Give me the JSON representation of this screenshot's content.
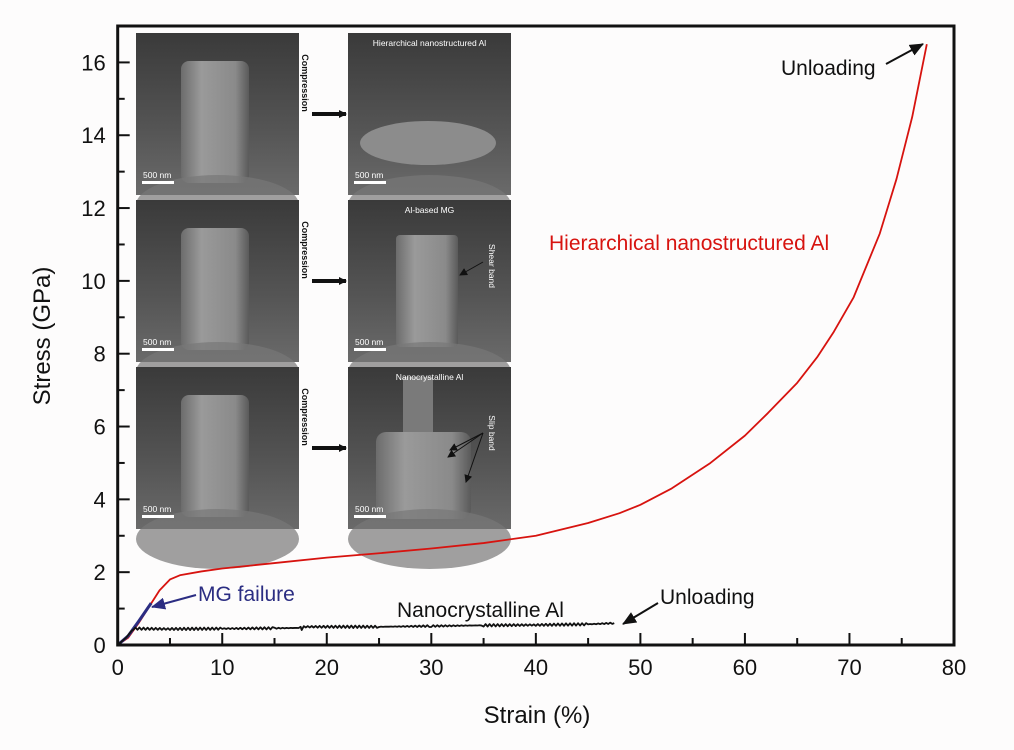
{
  "chart_data": {
    "type": "line",
    "xlabel": "Strain (%)",
    "ylabel": "Stress (GPa)",
    "xlim": [
      0,
      80
    ],
    "ylim": [
      0,
      17
    ],
    "xticks": [
      0,
      10,
      20,
      30,
      40,
      50,
      60,
      70,
      80
    ],
    "yticks": [
      0,
      2,
      4,
      6,
      8,
      10,
      12,
      14,
      16
    ],
    "grid": false,
    "series": [
      {
        "name": "Hierarchical nanostructured Al",
        "color": "#d7130f",
        "points": [
          [
            0,
            0
          ],
          [
            1,
            0.2
          ],
          [
            2,
            0.6
          ],
          [
            3,
            1.05
          ],
          [
            4,
            1.5
          ],
          [
            5,
            1.8
          ],
          [
            6,
            1.92
          ],
          [
            8,
            2.02
          ],
          [
            10,
            2.1
          ],
          [
            15,
            2.25
          ],
          [
            20,
            2.4
          ],
          [
            25,
            2.52
          ],
          [
            30,
            2.65
          ],
          [
            35,
            2.8
          ],
          [
            40,
            3.0
          ],
          [
            45,
            3.35
          ],
          [
            48,
            3.62
          ],
          [
            50,
            3.85
          ],
          [
            53,
            4.3
          ],
          [
            56.7,
            5.0
          ],
          [
            60,
            5.75
          ],
          [
            62.2,
            6.37
          ],
          [
            65,
            7.2
          ],
          [
            66.9,
            7.9
          ],
          [
            68.5,
            8.6
          ],
          [
            70.4,
            9.55
          ],
          [
            72.9,
            11.3
          ],
          [
            74.5,
            12.8
          ],
          [
            76,
            14.5
          ],
          [
            77.4,
            16.5
          ]
        ]
      },
      {
        "name": "MG failure",
        "color": "#2b2d82",
        "points": [
          [
            0,
            0
          ],
          [
            1,
            0.25
          ],
          [
            2,
            0.65
          ],
          [
            3.2,
            1.15
          ]
        ]
      },
      {
        "name": "Nanocrystalline Al",
        "color": "#111111",
        "points": [
          [
            0,
            0
          ],
          [
            0.8,
            0.2
          ],
          [
            1.5,
            0.45
          ],
          [
            5,
            0.44
          ],
          [
            10,
            0.45
          ],
          [
            15,
            0.46
          ],
          [
            17.5,
            0.47
          ],
          [
            17.6,
            0.38
          ],
          [
            17.8,
            0.5
          ],
          [
            25,
            0.5
          ],
          [
            30,
            0.52
          ],
          [
            35,
            0.54
          ],
          [
            40,
            0.55
          ],
          [
            45,
            0.57
          ],
          [
            47.5,
            0.6
          ]
        ]
      }
    ],
    "annotations": {
      "unloading_top": "Unloading",
      "hierarchical_label": "Hierarchical nanostructured Al",
      "mg_failure": "MG failure",
      "nanocrystalline_label": "Nanocrystalline Al",
      "unloading_bottom": "Unloading"
    }
  },
  "insets": {
    "compression_label": "Compression",
    "scale_bar": "500 nm",
    "rows": [
      {
        "title": "Hierarchical nanostructured Al",
        "note": ""
      },
      {
        "title": "Al-based MG",
        "note": "Shear band"
      },
      {
        "title": "Nanocrystalline Al",
        "note": "Slip band"
      }
    ]
  }
}
